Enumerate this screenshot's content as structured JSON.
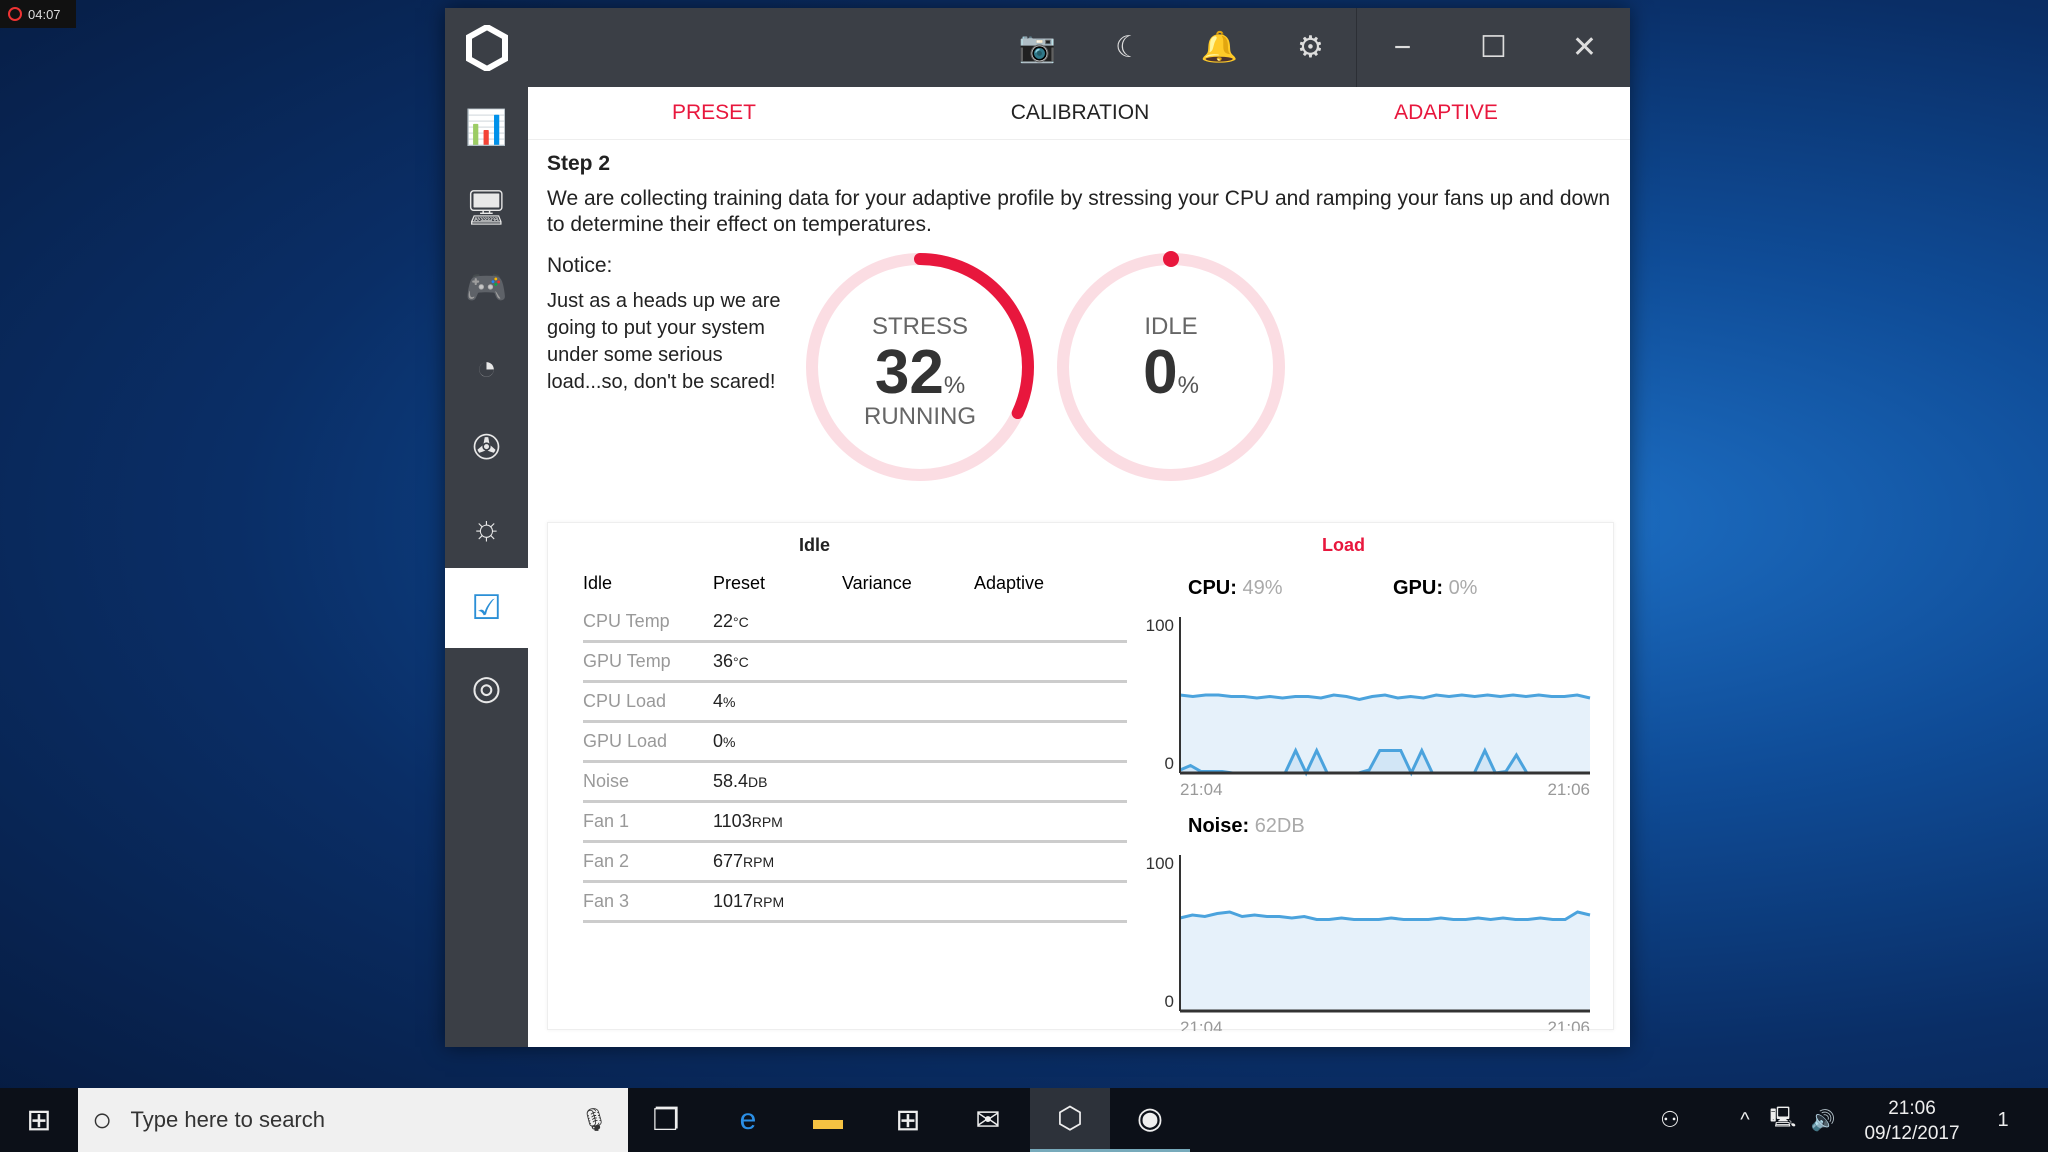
{
  "recording": {
    "time": "04:07"
  },
  "window": {
    "titlebar": {
      "icons": [
        "camera-icon",
        "moon-icon",
        "bell-icon",
        "gear-icon"
      ],
      "minimize": "−",
      "maximize": "☐",
      "close": "✕"
    },
    "sidebar": {
      "items": [
        "dashboard-icon",
        "monitor-icon",
        "gamepad-icon",
        "speedometer-icon",
        "fan-icon",
        "brightness-icon",
        "checklist-icon",
        "disk-icon"
      ],
      "active": 6
    },
    "tabs": [
      {
        "label": "PRESET",
        "color": "#e8173d"
      },
      {
        "label": "CALIBRATION",
        "color": "#222222"
      },
      {
        "label": "ADAPTIVE",
        "color": "#e8173d"
      }
    ],
    "step": {
      "title": "Step 2",
      "text": "We are collecting training data for your adaptive profile by stressing your CPU and ramping your fans up and down to determine their effect on temperatures."
    },
    "notice": {
      "title": "Notice:",
      "text": "Just as a heads up we are going to put your system under some serious load...so, don't be scared!"
    },
    "stress": {
      "label": "STRESS",
      "value": "32",
      "unit": "%",
      "status": "RUNNING",
      "progress": 32
    },
    "idle": {
      "label": "IDLE",
      "value": "0",
      "unit": "%",
      "progress": 0
    },
    "accent": "#e8173d"
  },
  "table": {
    "title": "Idle",
    "headers": [
      "Idle",
      "Preset",
      "Variance",
      "Adaptive"
    ],
    "rows": [
      {
        "label": "CPU Temp",
        "value": "22",
        "unit": "°C"
      },
      {
        "label": "GPU Temp",
        "value": "36",
        "unit": "°C"
      },
      {
        "label": "CPU Load",
        "value": "4",
        "unit": "%"
      },
      {
        "label": "GPU Load",
        "value": "0",
        "unit": "%"
      },
      {
        "label": "Noise",
        "value": "58.4",
        "unit": "DB"
      },
      {
        "label": "Fan 1",
        "value": "1103",
        "unit": "RPM"
      },
      {
        "label": "Fan 2",
        "value": "677",
        "unit": "RPM"
      },
      {
        "label": "Fan 3",
        "value": "1017",
        "unit": "RPM"
      }
    ]
  },
  "load": {
    "title": "Load",
    "cpu_label": "CPU:",
    "cpu_value": "49%",
    "gpu_label": "GPU:",
    "gpu_value": "0%",
    "noise_label": "Noise:",
    "noise_value": "62DB"
  },
  "chart_data": [
    {
      "type": "area",
      "ylim": [
        0,
        100
      ],
      "yticks": [
        "100",
        "0"
      ],
      "xticks": [
        "21:04",
        "21:06"
      ],
      "series": [
        {
          "values": [
            52,
            51,
            52,
            52,
            51,
            51,
            50,
            51,
            50,
            51,
            51,
            50,
            52,
            51,
            49,
            51,
            52,
            50,
            51,
            50,
            52,
            51,
            52,
            51,
            52,
            51,
            52,
            51,
            52,
            51,
            51,
            52,
            50
          ]
        },
        {
          "values": [
            2,
            5,
            1,
            1,
            1,
            0,
            0,
            0,
            0,
            0,
            0,
            15,
            0,
            15,
            0,
            0,
            0,
            0,
            2,
            15,
            15,
            15,
            0,
            15,
            0,
            0,
            0,
            0,
            0,
            15,
            0,
            1,
            12,
            0,
            0,
            0,
            0,
            0,
            0,
            0
          ]
        }
      ]
    },
    {
      "type": "area",
      "ylim": [
        0,
        100
      ],
      "yticks": [
        "100",
        "0"
      ],
      "xticks": [
        "21:04",
        "21:06"
      ],
      "series": [
        {
          "values": [
            62,
            64,
            63,
            65,
            66,
            63,
            64,
            63,
            63,
            62,
            63,
            61,
            61,
            62,
            61,
            61,
            61,
            62,
            61,
            61,
            61,
            62,
            61,
            61,
            62,
            61,
            62,
            61,
            61,
            62,
            61,
            61,
            66,
            64
          ]
        }
      ]
    }
  ],
  "taskbar": {
    "search_placeholder": "Type here to search",
    "time": "21:06",
    "date": "09/12/2017",
    "notifications": "1"
  }
}
